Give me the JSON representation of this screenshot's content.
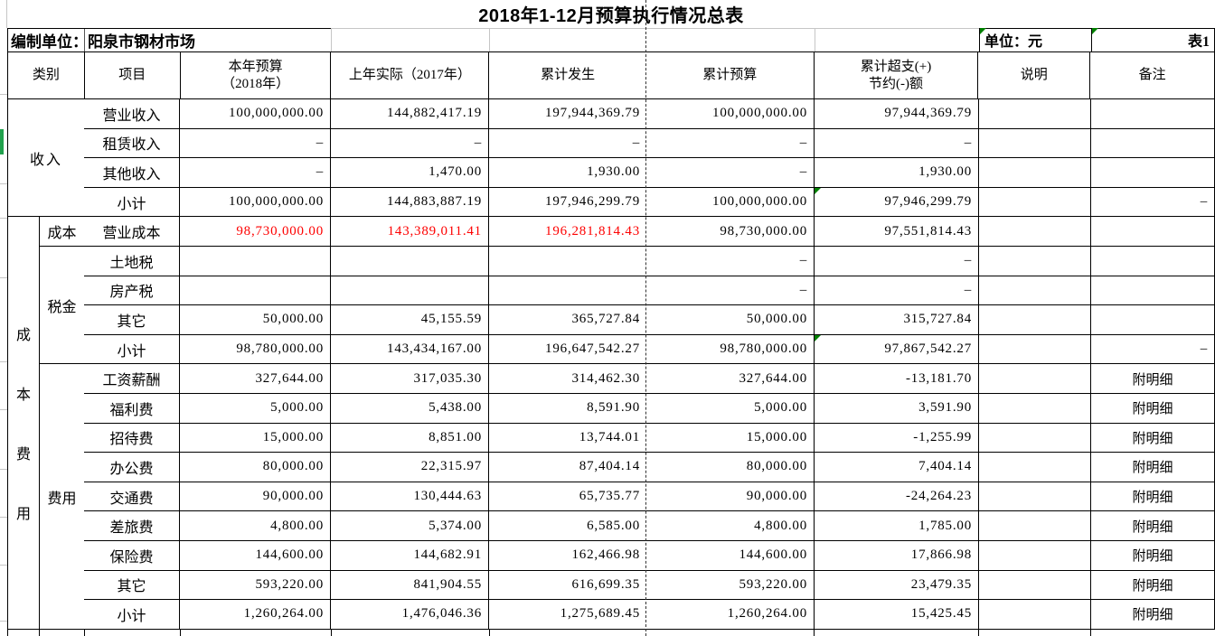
{
  "title": "2018年1-12月预算执行情况总表",
  "meta": {
    "org_label": "编制单位：阳泉市钢材市场",
    "unit_label": "单位：元",
    "sheet_label": "表1"
  },
  "colors": {
    "red_text": "#fe0000",
    "marker_green": "#008000",
    "stripe_green": "#21a14d"
  },
  "header": {
    "category": "类别",
    "item": "项目",
    "budget_line1": "本年预算",
    "budget_line2": "（2018年）",
    "actual_prev": "上年实际（2017年）",
    "cum_actual": "累计发生",
    "cum_budget": "累计预算",
    "over_line1": "累计超支(+)",
    "over_line2": "节约(-)额",
    "note": "说明",
    "remark": "备注"
  },
  "categories": {
    "income": "收入",
    "cost_expense_vertical": "成本费用",
    "cost": "成本",
    "tax": "税金",
    "expense": "费用"
  },
  "table": {
    "col_keys": [
      "item",
      "budget-2018",
      "actual-2017",
      "cum-actual",
      "cum-budget",
      "cum-over",
      "note",
      "remark"
    ],
    "rows": [
      {
        "cells": [
          "营业收入",
          "100,000,000.00",
          "144,882,417.19",
          "197,944,369.79",
          "100,000,000.00",
          "97,944,369.79",
          "",
          ""
        ]
      },
      {
        "cells": [
          "租赁收入",
          "–",
          "–",
          "–",
          "–",
          "–",
          "",
          ""
        ]
      },
      {
        "cells": [
          "其他收入",
          "–",
          "1,470.00",
          "1,930.00",
          "–",
          "1,930.00",
          "",
          ""
        ]
      },
      {
        "cells": [
          "小计",
          "100,000,000.00",
          "144,883,887.19",
          "197,946,299.79",
          "100,000,000.00",
          "97,946,299.79",
          "",
          "–"
        ],
        "marker": true
      },
      {
        "cells": [
          "营业成本",
          "98,730,000.00",
          "143,389,011.41",
          "196,281,814.43",
          "98,730,000.00",
          "97,551,814.43",
          "",
          ""
        ],
        "red": true
      },
      {
        "cells": [
          "土地税",
          "",
          "",
          "",
          "–",
          "–",
          "",
          ""
        ]
      },
      {
        "cells": [
          "房产税",
          "",
          "",
          "",
          "–",
          "–",
          "",
          ""
        ]
      },
      {
        "cells": [
          "其它",
          "50,000.00",
          "45,155.59",
          "365,727.84",
          "50,000.00",
          "315,727.84",
          "",
          ""
        ]
      },
      {
        "cells": [
          "小计",
          "98,780,000.00",
          "143,434,167.00",
          "196,647,542.27",
          "98,780,000.00",
          "97,867,542.27",
          "",
          "–"
        ],
        "marker": true
      },
      {
        "cells": [
          "工资薪酬",
          "327,644.00",
          "317,035.30",
          "314,462.30",
          "327,644.00",
          "-13,181.70",
          "",
          "附明细"
        ]
      },
      {
        "cells": [
          "福利费",
          "5,000.00",
          "5,438.00",
          "8,591.90",
          "5,000.00",
          "3,591.90",
          "",
          "附明细"
        ]
      },
      {
        "cells": [
          "招待费",
          "15,000.00",
          "8,851.00",
          "13,744.01",
          "15,000.00",
          "-1,255.99",
          "",
          "附明细"
        ]
      },
      {
        "cells": [
          "办公费",
          "80,000.00",
          "22,315.97",
          "87,404.14",
          "80,000.00",
          "7,404.14",
          "",
          "附明细"
        ]
      },
      {
        "cells": [
          "交通费",
          "90,000.00",
          "130,444.63",
          "65,735.77",
          "90,000.00",
          "-24,264.23",
          "",
          "附明细"
        ]
      },
      {
        "cells": [
          "差旅费",
          "4,800.00",
          "5,374.00",
          "6,585.00",
          "4,800.00",
          "1,785.00",
          "",
          "附明细"
        ]
      },
      {
        "cells": [
          "保险费",
          "144,600.00",
          "144,682.91",
          "162,466.98",
          "144,600.00",
          "17,866.98",
          "",
          "附明细"
        ]
      },
      {
        "cells": [
          "其它",
          "593,220.00",
          "841,904.55",
          "616,699.35",
          "593,220.00",
          "23,479.35",
          "",
          "附明细"
        ]
      },
      {
        "cells": [
          "小计",
          "1,260,264.00",
          "1,476,046.36",
          "1,275,689.45",
          "1,260,264.00",
          "15,425.45",
          "",
          "附明细"
        ]
      }
    ]
  }
}
